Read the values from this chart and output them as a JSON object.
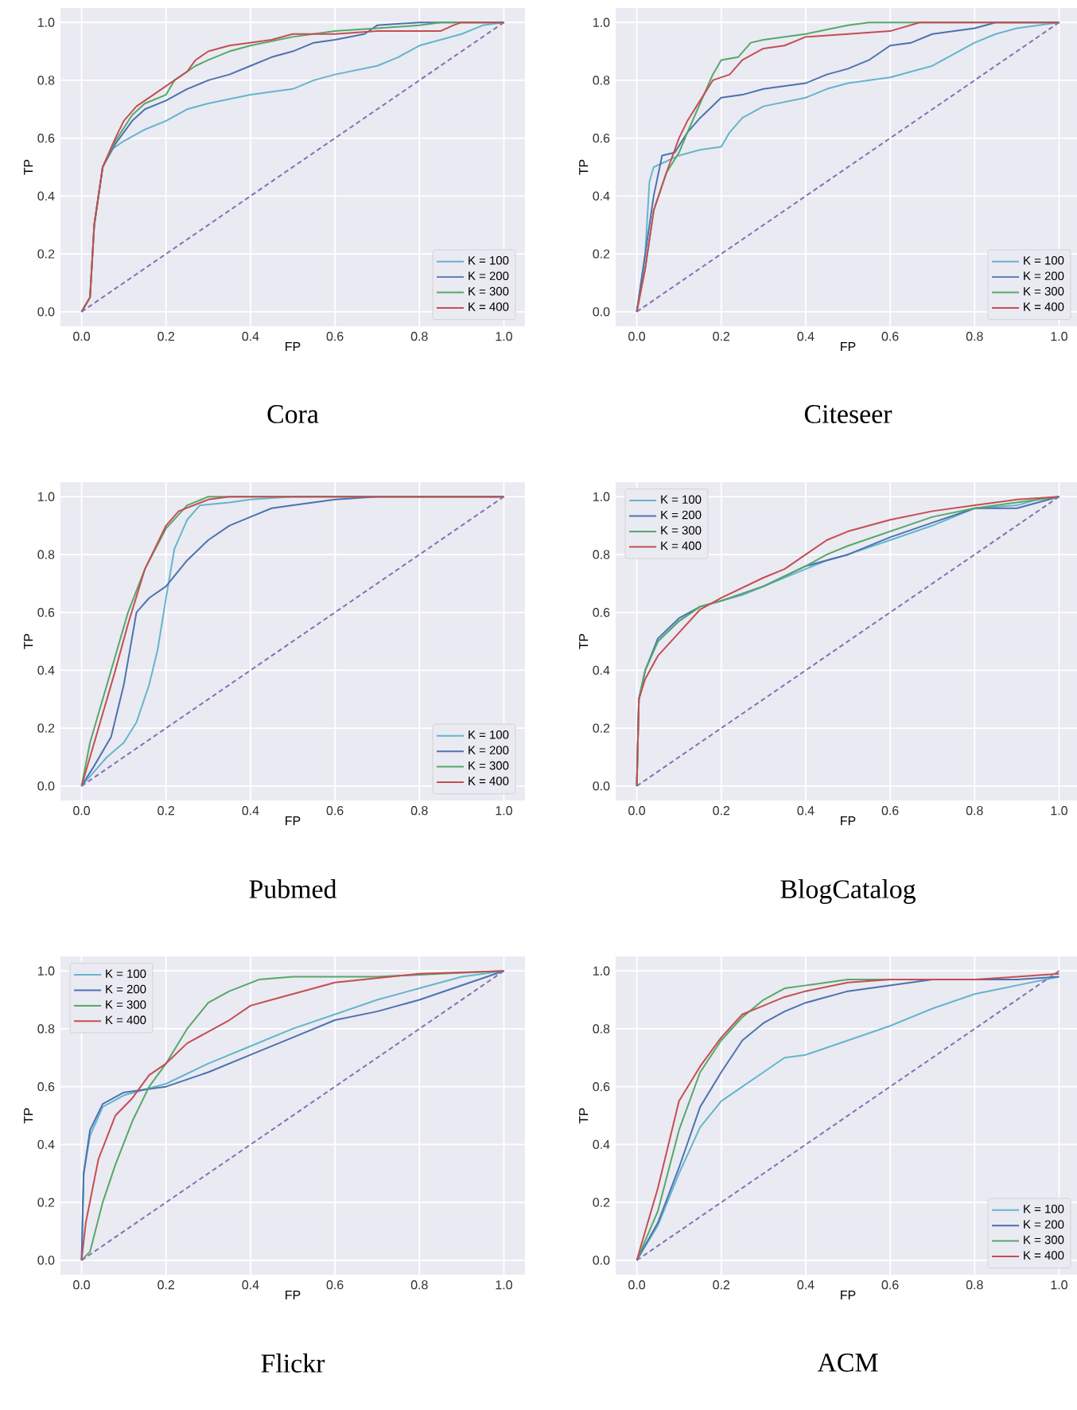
{
  "chart_data": [
    {
      "type": "line",
      "title": "Cora",
      "xlabel": "FP",
      "ylabel": "TP",
      "xlim": [
        -0.05,
        1.05
      ],
      "ylim": [
        -0.05,
        1.05
      ],
      "xticks": [
        {
          "value": 0,
          "label": "0.0"
        },
        {
          "value": 0.2,
          "label": "0.2"
        },
        {
          "value": 0.4,
          "label": "0.4"
        },
        {
          "value": 0.6,
          "label": "0.6"
        },
        {
          "value": 0.8,
          "label": "0.8"
        },
        {
          "value": 1,
          "label": "1.0"
        }
      ],
      "yticks": [
        {
          "value": 0,
          "label": "0.0"
        },
        {
          "value": 0.2,
          "label": "0.2"
        },
        {
          "value": 0.4,
          "label": "0.4"
        },
        {
          "value": 0.6,
          "label": "0.6"
        },
        {
          "value": 0.8,
          "label": "0.8"
        },
        {
          "value": 1,
          "label": "1.0"
        }
      ],
      "grid": true,
      "legend": "bottom right",
      "series": [
        {
          "name": "K = 100",
          "color": "#64b5cd",
          "x": [
            0.03,
            0.05,
            0.07,
            0.1,
            0.15,
            0.2,
            0.25,
            0.3,
            0.4,
            0.5,
            0.55,
            0.6,
            0.7,
            0.75,
            0.8,
            0.85,
            0.9,
            0.95,
            1
          ],
          "values": [
            0.3,
            0.5,
            0.56,
            0.59,
            0.63,
            0.66,
            0.7,
            0.72,
            0.75,
            0.77,
            0.8,
            0.82,
            0.85,
            0.88,
            0.92,
            0.94,
            0.96,
            0.99,
            1
          ]
        },
        {
          "name": "K = 200",
          "color": "#4c72b0",
          "x": [
            0,
            0.02,
            0.03,
            0.05,
            0.08,
            0.12,
            0.15,
            0.2,
            0.25,
            0.3,
            0.35,
            0.4,
            0.45,
            0.5,
            0.55,
            0.6,
            0.67,
            0.7,
            0.8,
            1
          ],
          "values": [
            0,
            0.05,
            0.3,
            0.5,
            0.58,
            0.66,
            0.7,
            0.73,
            0.77,
            0.8,
            0.82,
            0.85,
            0.88,
            0.9,
            0.93,
            0.94,
            0.96,
            0.99,
            1,
            1
          ]
        },
        {
          "name": "K = 300",
          "color": "#55a868",
          "x": [
            0,
            0.02,
            0.03,
            0.05,
            0.08,
            0.12,
            0.15,
            0.2,
            0.22,
            0.27,
            0.3,
            0.35,
            0.4,
            0.5,
            0.6,
            0.7,
            0.8,
            0.85,
            1
          ],
          "values": [
            0,
            0.05,
            0.3,
            0.5,
            0.59,
            0.68,
            0.72,
            0.75,
            0.8,
            0.85,
            0.87,
            0.9,
            0.92,
            0.95,
            0.97,
            0.98,
            0.99,
            1,
            1
          ]
        },
        {
          "name": "K = 400",
          "color": "#c44e52",
          "x": [
            0,
            0.02,
            0.03,
            0.05,
            0.08,
            0.1,
            0.13,
            0.17,
            0.2,
            0.25,
            0.27,
            0.3,
            0.35,
            0.45,
            0.5,
            0.6,
            0.7,
            0.8,
            0.85,
            0.88,
            0.9,
            1
          ],
          "values": [
            0,
            0.05,
            0.3,
            0.5,
            0.6,
            0.66,
            0.71,
            0.75,
            0.78,
            0.83,
            0.87,
            0.9,
            0.92,
            0.94,
            0.96,
            0.96,
            0.97,
            0.97,
            0.97,
            0.99,
            1,
            1
          ]
        },
        {
          "color": "#8172b2",
          "line_style": "dashed",
          "x": [
            0,
            1
          ],
          "values": [
            0,
            1
          ]
        }
      ]
    },
    {
      "type": "line",
      "title": "Citeseer",
      "xlabel": "FP",
      "ylabel": "TP",
      "xlim": [
        -0.05,
        1.05
      ],
      "ylim": [
        -0.05,
        1.05
      ],
      "xticks": [
        {
          "value": 0,
          "label": "0.0"
        },
        {
          "value": 0.2,
          "label": "0.2"
        },
        {
          "value": 0.4,
          "label": "0.4"
        },
        {
          "value": 0.6,
          "label": "0.6"
        },
        {
          "value": 0.8,
          "label": "0.8"
        },
        {
          "value": 1,
          "label": "1.0"
        }
      ],
      "yticks": [
        {
          "value": 0,
          "label": "0.0"
        },
        {
          "value": 0.2,
          "label": "0.2"
        },
        {
          "value": 0.4,
          "label": "0.4"
        },
        {
          "value": 0.6,
          "label": "0.6"
        },
        {
          "value": 0.8,
          "label": "0.8"
        },
        {
          "value": 1,
          "label": "1.0"
        }
      ],
      "grid": true,
      "legend": "bottom right",
      "series": [
        {
          "name": "K = 100",
          "color": "#64b5cd",
          "x": [
            0,
            0.02,
            0.03,
            0.04,
            0.07,
            0.1,
            0.15,
            0.2,
            0.22,
            0.25,
            0.3,
            0.4,
            0.45,
            0.5,
            0.6,
            0.7,
            0.75,
            0.8,
            0.85,
            0.9,
            1
          ],
          "values": [
            0,
            0.2,
            0.45,
            0.5,
            0.52,
            0.54,
            0.56,
            0.57,
            0.62,
            0.67,
            0.71,
            0.74,
            0.77,
            0.79,
            0.81,
            0.85,
            0.89,
            0.93,
            0.96,
            0.98,
            1
          ]
        },
        {
          "name": "K = 200",
          "color": "#4c72b0",
          "x": [
            0,
            0.02,
            0.04,
            0.06,
            0.09,
            0.12,
            0.15,
            0.2,
            0.25,
            0.3,
            0.4,
            0.45,
            0.5,
            0.55,
            0.6,
            0.65,
            0.7,
            0.8,
            0.85,
            1
          ],
          "values": [
            0,
            0.2,
            0.4,
            0.54,
            0.55,
            0.62,
            0.67,
            0.74,
            0.75,
            0.77,
            0.79,
            0.82,
            0.84,
            0.87,
            0.92,
            0.93,
            0.96,
            0.98,
            1,
            1
          ]
        },
        {
          "name": "K = 300",
          "color": "#55a868",
          "x": [
            0,
            0.02,
            0.04,
            0.07,
            0.1,
            0.12,
            0.15,
            0.18,
            0.2,
            0.24,
            0.27,
            0.3,
            0.4,
            0.5,
            0.55,
            1
          ],
          "values": [
            0,
            0.15,
            0.35,
            0.48,
            0.55,
            0.62,
            0.72,
            0.82,
            0.87,
            0.88,
            0.93,
            0.94,
            0.96,
            0.99,
            1,
            1
          ]
        },
        {
          "name": "K = 400",
          "color": "#c44e52",
          "x": [
            0,
            0.02,
            0.04,
            0.07,
            0.1,
            0.12,
            0.15,
            0.18,
            0.22,
            0.25,
            0.3,
            0.35,
            0.4,
            0.5,
            0.6,
            0.67,
            1
          ],
          "values": [
            0,
            0.15,
            0.35,
            0.48,
            0.6,
            0.66,
            0.73,
            0.8,
            0.82,
            0.87,
            0.91,
            0.92,
            0.95,
            0.96,
            0.97,
            1,
            1
          ]
        },
        {
          "color": "#8172b2",
          "line_style": "dashed",
          "x": [
            0,
            1
          ],
          "values": [
            0,
            1
          ]
        }
      ]
    },
    {
      "type": "line",
      "title": "Pubmed",
      "xlabel": "FP",
      "ylabel": "TP",
      "xlim": [
        -0.05,
        1.05
      ],
      "ylim": [
        -0.05,
        1.05
      ],
      "xticks": [
        {
          "value": 0,
          "label": "0.0"
        },
        {
          "value": 0.2,
          "label": "0.2"
        },
        {
          "value": 0.4,
          "label": "0.4"
        },
        {
          "value": 0.6,
          "label": "0.6"
        },
        {
          "value": 0.8,
          "label": "0.8"
        },
        {
          "value": 1,
          "label": "1.0"
        }
      ],
      "yticks": [
        {
          "value": 0,
          "label": "0.0"
        },
        {
          "value": 0.2,
          "label": "0.2"
        },
        {
          "value": 0.4,
          "label": "0.4"
        },
        {
          "value": 0.6,
          "label": "0.6"
        },
        {
          "value": 0.8,
          "label": "0.8"
        },
        {
          "value": 1,
          "label": "1.0"
        }
      ],
      "grid": true,
      "legend": "bottom right",
      "series": [
        {
          "name": "K = 100",
          "color": "#64b5cd",
          "x": [
            0,
            0.03,
            0.06,
            0.1,
            0.13,
            0.16,
            0.18,
            0.2,
            0.22,
            0.25,
            0.28,
            0.35,
            0.4,
            0.5,
            1
          ],
          "values": [
            0,
            0.05,
            0.1,
            0.15,
            0.22,
            0.35,
            0.47,
            0.65,
            0.82,
            0.92,
            0.97,
            0.98,
            0.99,
            1,
            1
          ]
        },
        {
          "name": "K = 200",
          "color": "#4c72b0",
          "x": [
            0,
            0.03,
            0.07,
            0.1,
            0.13,
            0.16,
            0.2,
            0.25,
            0.3,
            0.35,
            0.4,
            0.45,
            0.5,
            0.6,
            0.7,
            1
          ],
          "values": [
            0,
            0.07,
            0.17,
            0.35,
            0.6,
            0.65,
            0.69,
            0.78,
            0.85,
            0.9,
            0.93,
            0.96,
            0.97,
            0.99,
            1,
            1
          ]
        },
        {
          "name": "K = 300",
          "color": "#55a868",
          "x": [
            0,
            0.02,
            0.05,
            0.08,
            0.11,
            0.15,
            0.2,
            0.25,
            0.3,
            1
          ],
          "values": [
            0,
            0.15,
            0.3,
            0.45,
            0.6,
            0.75,
            0.89,
            0.97,
            1,
            1
          ]
        },
        {
          "name": "K = 400",
          "color": "#c44e52",
          "x": [
            0,
            0.02,
            0.05,
            0.08,
            0.11,
            0.15,
            0.2,
            0.23,
            0.3,
            0.35,
            1
          ],
          "values": [
            0,
            0.1,
            0.25,
            0.4,
            0.56,
            0.75,
            0.9,
            0.95,
            0.99,
            1,
            1
          ]
        },
        {
          "color": "#8172b2",
          "line_style": "dashed",
          "x": [
            0,
            1
          ],
          "values": [
            0,
            1
          ]
        }
      ]
    },
    {
      "type": "line",
      "title": "BlogCatalog",
      "xlabel": "FP",
      "ylabel": "TP",
      "xlim": [
        -0.05,
        1.05
      ],
      "ylim": [
        -0.05,
        1.05
      ],
      "xticks": [
        {
          "value": 0,
          "label": "0.0"
        },
        {
          "value": 0.2,
          "label": "0.2"
        },
        {
          "value": 0.4,
          "label": "0.4"
        },
        {
          "value": 0.6,
          "label": "0.6"
        },
        {
          "value": 0.8,
          "label": "0.8"
        },
        {
          "value": 1,
          "label": "1.0"
        }
      ],
      "yticks": [
        {
          "value": 0,
          "label": "0.0"
        },
        {
          "value": 0.2,
          "label": "0.2"
        },
        {
          "value": 0.4,
          "label": "0.4"
        },
        {
          "value": 0.6,
          "label": "0.6"
        },
        {
          "value": 0.8,
          "label": "0.8"
        },
        {
          "value": 1,
          "label": "1.0"
        }
      ],
      "grid": true,
      "legend": "top left",
      "series": [
        {
          "name": "K = 100",
          "color": "#64b5cd",
          "x": [
            0,
            0.005,
            0.02,
            0.05,
            0.1,
            0.15,
            0.2,
            0.25,
            0.3,
            0.4,
            0.45,
            0.5,
            0.6,
            0.7,
            0.8,
            0.9,
            0.95,
            1
          ],
          "values": [
            0,
            0.3,
            0.4,
            0.5,
            0.57,
            0.62,
            0.64,
            0.66,
            0.69,
            0.75,
            0.78,
            0.8,
            0.85,
            0.9,
            0.96,
            0.97,
            0.99,
            1
          ]
        },
        {
          "name": "K = 200",
          "color": "#4c72b0",
          "x": [
            0,
            0.005,
            0.02,
            0.05,
            0.1,
            0.15,
            0.2,
            0.3,
            0.4,
            0.5,
            0.6,
            0.7,
            0.8,
            0.9,
            0.95,
            1
          ],
          "values": [
            0,
            0.3,
            0.4,
            0.51,
            0.58,
            0.62,
            0.64,
            0.69,
            0.76,
            0.8,
            0.86,
            0.91,
            0.96,
            0.96,
            0.98,
            1
          ]
        },
        {
          "name": "K = 300",
          "color": "#55a868",
          "x": [
            0,
            0.005,
            0.02,
            0.05,
            0.1,
            0.15,
            0.2,
            0.3,
            0.4,
            0.45,
            0.5,
            0.6,
            0.7,
            0.8,
            0.9,
            1
          ],
          "values": [
            0,
            0.3,
            0.4,
            0.5,
            0.57,
            0.62,
            0.64,
            0.69,
            0.76,
            0.8,
            0.83,
            0.88,
            0.93,
            0.96,
            0.98,
            1
          ]
        },
        {
          "name": "K = 400",
          "color": "#c44e52",
          "x": [
            0,
            0.005,
            0.02,
            0.05,
            0.1,
            0.15,
            0.2,
            0.3,
            0.35,
            0.4,
            0.45,
            0.5,
            0.6,
            0.7,
            0.8,
            0.9,
            1
          ],
          "values": [
            0,
            0.3,
            0.37,
            0.45,
            0.53,
            0.61,
            0.65,
            0.72,
            0.75,
            0.8,
            0.85,
            0.88,
            0.92,
            0.95,
            0.97,
            0.99,
            1
          ]
        },
        {
          "color": "#8172b2",
          "line_style": "dashed",
          "x": [
            0,
            1
          ],
          "values": [
            0,
            1
          ]
        }
      ]
    },
    {
      "type": "line",
      "title": "Flickr",
      "xlabel": "FP",
      "ylabel": "TP",
      "xlim": [
        -0.05,
        1.05
      ],
      "ylim": [
        -0.05,
        1.05
      ],
      "xticks": [
        {
          "value": 0,
          "label": "0.0"
        },
        {
          "value": 0.2,
          "label": "0.2"
        },
        {
          "value": 0.4,
          "label": "0.4"
        },
        {
          "value": 0.6,
          "label": "0.6"
        },
        {
          "value": 0.8,
          "label": "0.8"
        },
        {
          "value": 1,
          "label": "1.0"
        }
      ],
      "yticks": [
        {
          "value": 0,
          "label": "0.0"
        },
        {
          "value": 0.2,
          "label": "0.2"
        },
        {
          "value": 0.4,
          "label": "0.4"
        },
        {
          "value": 0.6,
          "label": "0.6"
        },
        {
          "value": 0.8,
          "label": "0.8"
        },
        {
          "value": 1,
          "label": "1.0"
        }
      ],
      "grid": true,
      "legend": "top left",
      "series": [
        {
          "name": "K = 100",
          "color": "#64b5cd",
          "x": [
            0,
            0.005,
            0.02,
            0.05,
            0.1,
            0.15,
            0.2,
            0.3,
            0.4,
            0.5,
            0.6,
            0.7,
            0.8,
            0.9,
            1
          ],
          "values": [
            0,
            0.3,
            0.43,
            0.53,
            0.57,
            0.59,
            0.61,
            0.68,
            0.74,
            0.8,
            0.85,
            0.9,
            0.94,
            0.98,
            1
          ]
        },
        {
          "name": "K = 200",
          "color": "#4c72b0",
          "x": [
            0,
            0.005,
            0.02,
            0.05,
            0.1,
            0.15,
            0.2,
            0.3,
            0.4,
            0.5,
            0.6,
            0.7,
            0.8,
            0.9,
            1
          ],
          "values": [
            0,
            0.3,
            0.45,
            0.54,
            0.58,
            0.59,
            0.6,
            0.65,
            0.71,
            0.77,
            0.83,
            0.86,
            0.9,
            0.95,
            1
          ]
        },
        {
          "name": "K = 300",
          "color": "#55a868",
          "x": [
            0,
            0.02,
            0.05,
            0.08,
            0.12,
            0.16,
            0.2,
            0.25,
            0.3,
            0.35,
            0.42,
            0.5,
            0.7,
            0.85,
            1
          ],
          "values": [
            0,
            0.03,
            0.2,
            0.33,
            0.48,
            0.6,
            0.68,
            0.8,
            0.89,
            0.93,
            0.97,
            0.98,
            0.98,
            0.99,
            1
          ]
        },
        {
          "name": "K = 400",
          "color": "#c44e52",
          "x": [
            0,
            0.01,
            0.04,
            0.08,
            0.12,
            0.16,
            0.2,
            0.25,
            0.3,
            0.35,
            0.4,
            0.45,
            0.5,
            0.6,
            0.8,
            1
          ],
          "values": [
            0,
            0.13,
            0.35,
            0.5,
            0.56,
            0.64,
            0.68,
            0.75,
            0.79,
            0.83,
            0.88,
            0.9,
            0.92,
            0.96,
            0.99,
            1
          ]
        },
        {
          "color": "#8172b2",
          "line_style": "dashed",
          "x": [
            0,
            1
          ],
          "values": [
            0,
            1
          ]
        }
      ]
    },
    {
      "type": "line",
      "title": "ACM",
      "xlabel": "FP",
      "ylabel": "TP",
      "xlim": [
        -0.05,
        1.05
      ],
      "ylim": [
        -0.05,
        1.05
      ],
      "xticks": [
        {
          "value": 0,
          "label": "0.0"
        },
        {
          "value": 0.2,
          "label": "0.2"
        },
        {
          "value": 0.4,
          "label": "0.4"
        },
        {
          "value": 0.6,
          "label": "0.6"
        },
        {
          "value": 0.8,
          "label": "0.8"
        },
        {
          "value": 1,
          "label": "1.0"
        }
      ],
      "yticks": [
        {
          "value": 0,
          "label": "0.0"
        },
        {
          "value": 0.2,
          "label": "0.2"
        },
        {
          "value": 0.4,
          "label": "0.4"
        },
        {
          "value": 0.6,
          "label": "0.6"
        },
        {
          "value": 0.8,
          "label": "0.8"
        },
        {
          "value": 1,
          "label": "1.0"
        }
      ],
      "grid": true,
      "legend": "bottom right",
      "series": [
        {
          "name": "K = 100",
          "color": "#64b5cd",
          "x": [
            0,
            0.05,
            0.1,
            0.15,
            0.2,
            0.25,
            0.3,
            0.35,
            0.4,
            0.5,
            0.6,
            0.7,
            0.8,
            0.9,
            1
          ],
          "values": [
            0,
            0.12,
            0.3,
            0.46,
            0.55,
            0.6,
            0.65,
            0.7,
            0.71,
            0.76,
            0.81,
            0.87,
            0.92,
            0.95,
            0.98
          ]
        },
        {
          "name": "K = 200",
          "color": "#4c72b0",
          "x": [
            0,
            0.05,
            0.1,
            0.15,
            0.2,
            0.25,
            0.3,
            0.35,
            0.4,
            0.5,
            0.6,
            0.7,
            0.8,
            0.9,
            1
          ],
          "values": [
            0,
            0.13,
            0.32,
            0.53,
            0.65,
            0.76,
            0.82,
            0.86,
            0.89,
            0.93,
            0.95,
            0.97,
            0.97,
            0.97,
            0.98
          ]
        },
        {
          "name": "K = 300",
          "color": "#55a868",
          "x": [
            0,
            0.05,
            0.1,
            0.15,
            0.2,
            0.25,
            0.3,
            0.35,
            0.4,
            0.5,
            0.6,
            0.8
          ],
          "values": [
            0,
            0.17,
            0.45,
            0.65,
            0.76,
            0.84,
            0.9,
            0.94,
            0.95,
            0.97,
            0.97,
            0.97
          ]
        },
        {
          "name": "K = 400",
          "color": "#c44e52",
          "x": [
            0,
            0.05,
            0.1,
            0.15,
            0.2,
            0.25,
            0.3,
            0.35,
            0.4,
            0.5,
            0.6,
            0.8,
            0.9,
            1
          ],
          "values": [
            0,
            0.25,
            0.55,
            0.67,
            0.77,
            0.85,
            0.88,
            0.91,
            0.93,
            0.96,
            0.97,
            0.97,
            0.98,
            0.99
          ]
        },
        {
          "color": "#8172b2",
          "line_style": "dashed",
          "x": [
            0,
            1
          ],
          "values": [
            0,
            1
          ]
        }
      ]
    }
  ]
}
